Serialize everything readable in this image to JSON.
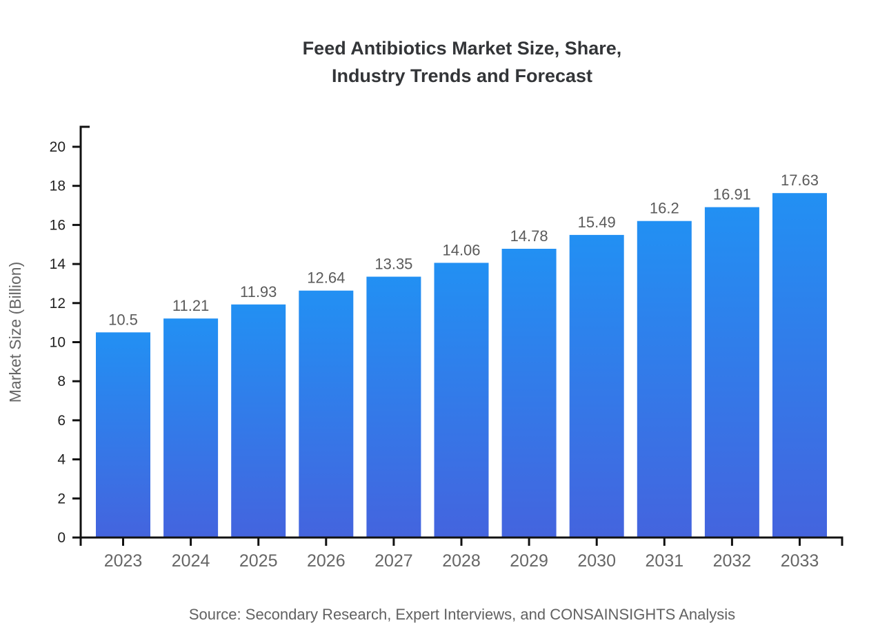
{
  "title": {
    "line1": "Feed Antibiotics Market Size, Share,",
    "line2": "Industry Trends and Forecast"
  },
  "chart_data": {
    "type": "bar",
    "title": "Feed Antibiotics Market Size, Share, Industry Trends and Forecast",
    "categories": [
      "2023",
      "2024",
      "2025",
      "2026",
      "2027",
      "2028",
      "2029",
      "2030",
      "2031",
      "2032",
      "2033"
    ],
    "values": [
      10.5,
      11.21,
      11.93,
      12.64,
      13.35,
      14.06,
      14.78,
      15.49,
      16.2,
      16.91,
      17.63
    ],
    "xlabel": "",
    "ylabel": "Market Size (Billion)",
    "ylim": [
      0,
      20
    ],
    "yticks": [
      0,
      2,
      4,
      6,
      8,
      10,
      12,
      14,
      16,
      18,
      20
    ],
    "grid": false,
    "legend": "none",
    "source": "Source: Secondary Research, Expert Interviews, and CONSAINSIGHTS Analysis"
  },
  "colors": {
    "background": "#ffffff",
    "bar_gradient_top": "#2290F3",
    "bar_gradient_bottom": "#4464DE",
    "axis": "#111111",
    "title_text": "#333538",
    "y_tick_text": "#212121",
    "x_tick_text": "#666666",
    "value_label_text": "#5a5a5a",
    "axis_title_text": "#666666",
    "source_text": "#616161"
  }
}
